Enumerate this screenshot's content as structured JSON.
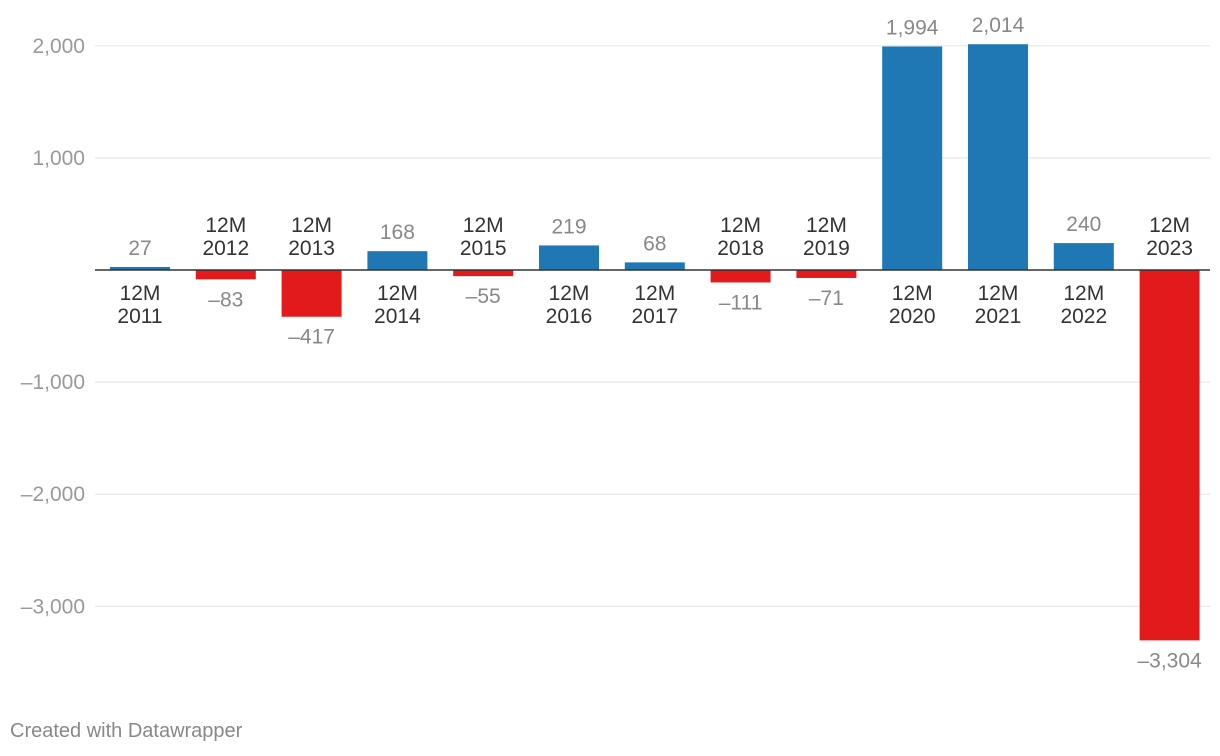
{
  "chart_data": {
    "type": "bar",
    "title": "",
    "xlabel": "",
    "ylabel": "",
    "ylim": [
      -3500,
      2200
    ],
    "yticks": [
      -3000,
      -2000,
      -1000,
      1000,
      2000
    ],
    "ytick_labels": [
      "–3,000",
      "–2,000",
      "–1,000",
      "1,000",
      "2,000"
    ],
    "categories": [
      [
        "12M",
        "2011"
      ],
      [
        "12M",
        "2012"
      ],
      [
        "12M",
        "2013"
      ],
      [
        "12M",
        "2014"
      ],
      [
        "12M",
        "2015"
      ],
      [
        "12M",
        "2016"
      ],
      [
        "12M",
        "2017"
      ],
      [
        "12M",
        "2018"
      ],
      [
        "12M",
        "2019"
      ],
      [
        "12M",
        "2020"
      ],
      [
        "12M",
        "2021"
      ],
      [
        "12M",
        "2022"
      ],
      [
        "12M",
        "2023"
      ]
    ],
    "values": [
      27,
      -83,
      -417,
      168,
      -55,
      219,
      68,
      -111,
      -71,
      1994,
      2014,
      240,
      -3304
    ],
    "value_labels": [
      "27",
      "–83",
      "–417",
      "168",
      "–55",
      "219",
      "68",
      "–111",
      "–71",
      "1,994",
      "2,014",
      "240",
      "–3,304"
    ],
    "colors": {
      "positive": "#1f78b4",
      "negative": "#e31a1c",
      "grid": "#e6e6e6",
      "baseline": "#333333",
      "tick_text": "#999999",
      "value_text": "#888888",
      "category_text": "#333333"
    }
  },
  "footer": {
    "credit": "Created with Datawrapper"
  }
}
